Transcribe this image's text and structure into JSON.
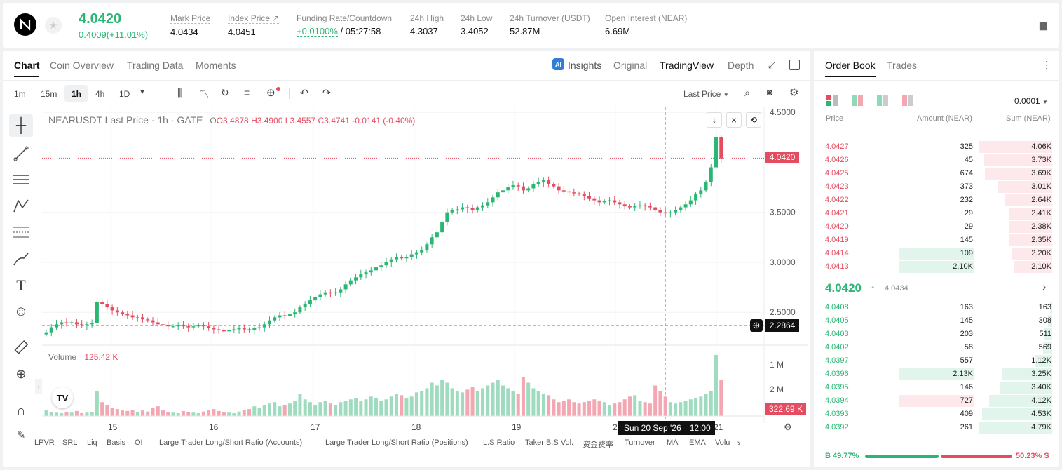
{
  "header": {
    "price": "4.0420",
    "change": "0.4009(+11.01%)",
    "stats": [
      {
        "label": "Mark Price",
        "value": "4.0434"
      },
      {
        "label": "Index Price",
        "value": "4.0451"
      },
      {
        "label": "Funding Rate/Countdown",
        "value_rate": "+0.0100%",
        "value_time": "/ 05:27:58"
      },
      {
        "label": "24h High",
        "value": "4.3037"
      },
      {
        "label": "24h Low",
        "value": "3.4052"
      },
      {
        "label": "24h Turnover (USDT)",
        "value": "52.87M"
      },
      {
        "label": "Open Interest (NEAR)",
        "value": "6.69M"
      }
    ]
  },
  "chart_tabs": [
    "Chart",
    "Coin Overview",
    "Trading Data",
    "Moments"
  ],
  "view_tabs": {
    "insights": "Insights",
    "original": "Original",
    "tradingview": "TradingView",
    "depth": "Depth"
  },
  "intervals": [
    "1m",
    "15m",
    "1h",
    "4h",
    "1D"
  ],
  "price_type": "Last Price",
  "legend": {
    "symbol": "NEARUSDT Last Price · 1h · GATE",
    "o": "O3.4878",
    "h": "H3.4900",
    "l": "L3.4557",
    "c": "C3.4741",
    "chg": "-0.0141 (-0.40%)"
  },
  "volume_label": "Volume",
  "volume_value": "125.42 K",
  "price_axis": [
    "4.5000",
    "3.5000",
    "3.0000",
    "2.5000"
  ],
  "vol_axis": [
    "2 M",
    "1 M"
  ],
  "last_price_tag": "4.0420",
  "cursor_price_tag": "2.2864",
  "vol_tag": "322.69 K",
  "x_ticks": [
    "15",
    "16",
    "17",
    "18",
    "19",
    "20",
    "21"
  ],
  "cursor_time": "Sun 20 Sep '26",
  "cursor_hour": "12:00",
  "bottom_tabs": [
    "LPVR",
    "SRL",
    "Liq",
    "Basis",
    "OI",
    "Large Trader Long/Short Ratio (Accounts)",
    "Large Trader Long/Short Ratio (Positions)",
    "L.S Ratio",
    "Taker B.S Vol.",
    "资金费率",
    "Turnover",
    "MA",
    "EMA",
    "Volu"
  ],
  "orderbook": {
    "tabs": [
      "Order Book",
      "Trades"
    ],
    "precision": "0.0001",
    "headers": [
      "Price",
      "Amount (NEAR)",
      "Sum (NEAR)"
    ],
    "asks": [
      {
        "p": "4.0427",
        "a": "325",
        "s": "4.06K",
        "d": 1.0,
        "g": false
      },
      {
        "p": "4.0426",
        "a": "45",
        "s": "3.73K",
        "d": 0.92,
        "g": false
      },
      {
        "p": "4.0425",
        "a": "674",
        "s": "3.69K",
        "d": 0.91,
        "g": false
      },
      {
        "p": "4.0423",
        "a": "373",
        "s": "3.01K",
        "d": 0.74,
        "g": false
      },
      {
        "p": "4.0422",
        "a": "232",
        "s": "2.64K",
        "d": 0.65,
        "g": false
      },
      {
        "p": "4.0421",
        "a": "29",
        "s": "2.41K",
        "d": 0.59,
        "g": false
      },
      {
        "p": "4.0420",
        "a": "29",
        "s": "2.38K",
        "d": 0.59,
        "g": false
      },
      {
        "p": "4.0419",
        "a": "145",
        "s": "2.35K",
        "d": 0.58,
        "g": false
      },
      {
        "p": "4.0414",
        "a": "109",
        "s": "2.20K",
        "d": 0.54,
        "g": true
      },
      {
        "p": "4.0413",
        "a": "2.10K",
        "s": "2.10K",
        "d": 0.52,
        "g": true
      }
    ],
    "mid_price": "4.0420",
    "mid_mark": "4.0434",
    "bids": [
      {
        "p": "4.0408",
        "a": "163",
        "s": "163",
        "d": 0.03,
        "r": false
      },
      {
        "p": "4.0405",
        "a": "145",
        "s": "308",
        "d": 0.06,
        "r": false
      },
      {
        "p": "4.0403",
        "a": "203",
        "s": "511",
        "d": 0.11,
        "r": false
      },
      {
        "p": "4.0402",
        "a": "58",
        "s": "569",
        "d": 0.12,
        "r": false
      },
      {
        "p": "4.0397",
        "a": "557",
        "s": "1.12K",
        "d": 0.23,
        "r": false
      },
      {
        "p": "4.0396",
        "a": "2.13K",
        "s": "3.25K",
        "d": 0.68,
        "r": false
      },
      {
        "p": "4.0395",
        "a": "146",
        "s": "3.40K",
        "d": 0.71,
        "r": false
      },
      {
        "p": "4.0394",
        "a": "727",
        "s": "4.12K",
        "d": 0.86,
        "r": true
      },
      {
        "p": "4.0393",
        "a": "409",
        "s": "4.53K",
        "d": 0.95,
        "r": false
      },
      {
        "p": "4.0392",
        "a": "261",
        "s": "4.79K",
        "d": 1.0,
        "r": false
      }
    ],
    "buy_pct": "B 49.77%",
    "sell_pct": "50.23% S",
    "buy_ratio": 0.4977
  },
  "chart_data": {
    "type": "candlestick",
    "title": "NEARUSDT Last Price · 1h · GATE",
    "x_tick_labels": [
      "15",
      "16",
      "17",
      "18",
      "19",
      "20",
      "21"
    ],
    "y_ticks": [
      4.5,
      3.5,
      3.0,
      2.5
    ],
    "ylim": [
      2.2,
      4.55
    ],
    "last_price": 4.042,
    "close_path": [
      2.3,
      2.35,
      2.38,
      2.4,
      2.39,
      2.4,
      2.38,
      2.37,
      2.38,
      2.39,
      2.6,
      2.58,
      2.55,
      2.52,
      2.5,
      2.48,
      2.47,
      2.45,
      2.45,
      2.43,
      2.42,
      2.4,
      2.38,
      2.37,
      2.36,
      2.36,
      2.37,
      2.36,
      2.35,
      2.36,
      2.37,
      2.36,
      2.34,
      2.33,
      2.32,
      2.31,
      2.32,
      2.33,
      2.34,
      2.33,
      2.32,
      2.34,
      2.35,
      2.38,
      2.42,
      2.45,
      2.47,
      2.46,
      2.48,
      2.5,
      2.55,
      2.58,
      2.62,
      2.65,
      2.68,
      2.7,
      2.69,
      2.7,
      2.73,
      2.78,
      2.82,
      2.85,
      2.88,
      2.9,
      2.92,
      2.95,
      2.97,
      3.0,
      3.03,
      3.05,
      3.04,
      3.05,
      3.08,
      3.1,
      3.12,
      3.18,
      3.25,
      3.3,
      3.4,
      3.5,
      3.52,
      3.53,
      3.55,
      3.54,
      3.52,
      3.55,
      3.57,
      3.6,
      3.65,
      3.7,
      3.72,
      3.75,
      3.77,
      3.76,
      3.72,
      3.74,
      3.78,
      3.8,
      3.82,
      3.78,
      3.76,
      3.72,
      3.71,
      3.7,
      3.69,
      3.68,
      3.66,
      3.64,
      3.62,
      3.6,
      3.61,
      3.62,
      3.6,
      3.58,
      3.56,
      3.55,
      3.56,
      3.57,
      3.56,
      3.55,
      3.52,
      3.5,
      3.49,
      3.5,
      3.52,
      3.55,
      3.58,
      3.62,
      3.68,
      3.72,
      3.8,
      3.95,
      4.25,
      4.04
    ],
    "volume_path": [
      0.2,
      0.15,
      0.12,
      0.1,
      0.14,
      0.12,
      0.18,
      0.1,
      0.12,
      0.15,
      0.9,
      0.5,
      0.4,
      0.3,
      0.25,
      0.2,
      0.18,
      0.22,
      0.15,
      0.2,
      0.16,
      0.3,
      0.35,
      0.2,
      0.15,
      0.12,
      0.1,
      0.18,
      0.14,
      0.12,
      0.1,
      0.16,
      0.2,
      0.25,
      0.18,
      0.14,
      0.12,
      0.1,
      0.16,
      0.22,
      0.25,
      0.35,
      0.3,
      0.4,
      0.45,
      0.5,
      0.35,
      0.4,
      0.45,
      0.55,
      0.8,
      0.6,
      0.5,
      0.4,
      0.5,
      0.55,
      0.45,
      0.4,
      0.5,
      0.55,
      0.6,
      0.65,
      0.55,
      0.6,
      0.7,
      0.65,
      0.55,
      0.6,
      0.7,
      0.8,
      0.75,
      0.65,
      0.7,
      0.85,
      0.9,
      1.0,
      1.2,
      1.1,
      1.3,
      1.2,
      1.0,
      0.9,
      0.85,
      0.95,
      1.05,
      0.9,
      1.0,
      1.1,
      1.2,
      1.3,
      1.1,
      1.0,
      0.9,
      0.8,
      1.4,
      1.2,
      1.0,
      0.9,
      0.8,
      0.75,
      0.6,
      0.5,
      0.55,
      0.6,
      0.5,
      0.45,
      0.5,
      0.55,
      0.6,
      0.55,
      0.5,
      0.4,
      0.45,
      0.5,
      0.6,
      0.7,
      0.75,
      0.55,
      0.5,
      0.45,
      1.1,
      0.9,
      0.7,
      0.5,
      0.45,
      0.5,
      0.55,
      0.6,
      0.65,
      0.7,
      0.8,
      0.9,
      2.2,
      1.3,
      0.3
    ]
  }
}
